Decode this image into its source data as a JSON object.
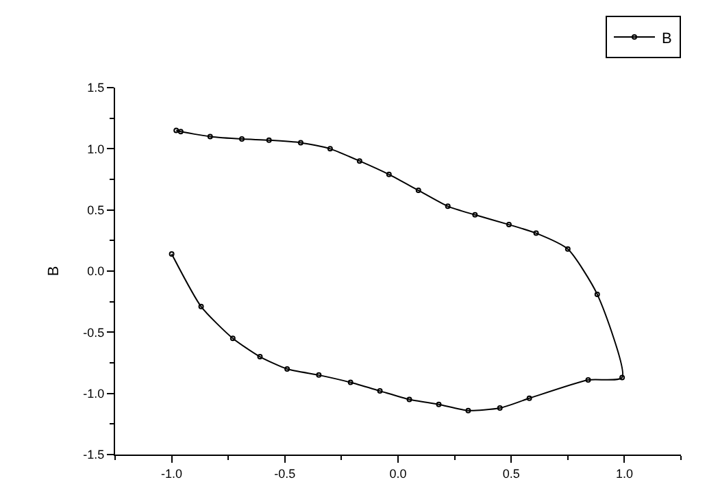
{
  "chart_data": {
    "type": "line",
    "ylabel": "B",
    "xlim": [
      -1.25,
      1.25
    ],
    "ylim": [
      -1.5,
      1.5
    ],
    "xticks": [
      {
        "value": -1,
        "label": "-1.0"
      },
      -0.5,
      {
        "value": 0,
        "label": "0.0"
      },
      0.5,
      {
        "value": 1,
        "label": "1.0"
      }
    ],
    "yticks": [
      -1.5,
      {
        "value": -1,
        "label": "-1.0"
      },
      -0.5,
      {
        "value": 0,
        "label": "0.0"
      },
      0.5,
      {
        "value": 1,
        "label": "1.0"
      },
      1.5
    ],
    "legend": "top right",
    "marker": "circle",
    "line_style": "solid",
    "series": [
      {
        "name": "B",
        "color": "#000000",
        "x": [
          -0.98,
          -0.96,
          -0.83,
          -0.69,
          -0.57,
          -0.43,
          -0.3,
          -0.17,
          -0.04,
          0.09,
          0.22,
          0.34,
          0.49,
          0.61,
          0.75,
          0.88,
          0.99,
          0.84,
          0.58,
          0.45,
          0.31,
          0.18,
          0.05,
          -0.08,
          -0.21,
          -0.35,
          -0.49,
          -0.61,
          -0.73,
          -0.87,
          -1.0
        ],
        "values": [
          1.15,
          1.14,
          1.1,
          1.08,
          1.07,
          1.05,
          1.0,
          0.9,
          0.79,
          0.66,
          0.53,
          0.46,
          0.38,
          0.31,
          0.18,
          -0.19,
          -0.87,
          -0.89,
          -1.04,
          -1.12,
          -1.14,
          -1.09,
          -1.05,
          -0.98,
          -0.91,
          -0.85,
          -0.8,
          -0.7,
          -0.55,
          -0.29,
          0.14
        ]
      }
    ]
  }
}
